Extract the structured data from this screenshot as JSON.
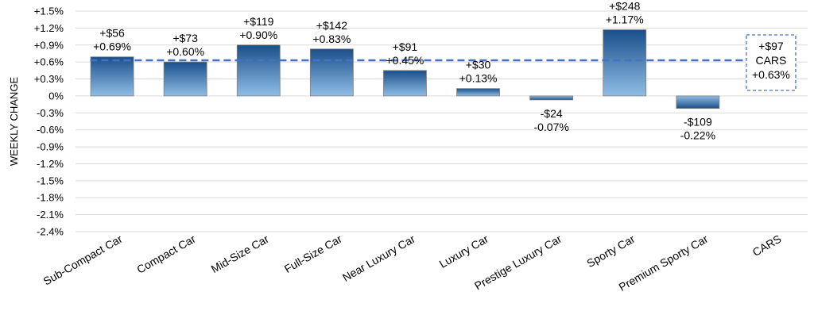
{
  "chart_data": {
    "type": "bar",
    "title": "",
    "xlabel": "",
    "ylabel": "WEEKLY CHANGE",
    "ylim": [
      -2.4,
      1.5
    ],
    "y_ticks": [
      "+1.5%",
      "+1.2%",
      "+0.9%",
      "+0.6%",
      "+0.3%",
      "0%",
      "-0.3%",
      "-0.6%",
      "-0.9%",
      "-1.2%",
      "-1.5%",
      "-1.8%",
      "-2.1%",
      "-2.4%"
    ],
    "grid": true,
    "categories": [
      "Sub-Compact Car",
      "Compact Car",
      "Mid-Size Car",
      "Full-Size Car",
      "Near Luxury Car",
      "Luxury Car",
      "Prestige Luxury Car",
      "Sporty Car",
      "Premium Sporty Car",
      "CARS"
    ],
    "values": [
      0.69,
      0.6,
      0.9,
      0.83,
      0.45,
      0.13,
      -0.07,
      1.17,
      -0.22,
      null
    ],
    "dollar_labels": [
      "+$56",
      "+$73",
      "+$119",
      "+$142",
      "+$91",
      "+$30",
      "-$24",
      "+$248",
      "-$109"
    ],
    "percent_labels": [
      "+0.69%",
      "+0.60%",
      "+0.90%",
      "+0.83%",
      "+0.45%",
      "+0.13%",
      "-0.07%",
      "+1.17%",
      "-0.22%"
    ],
    "reference_line": {
      "value": 0.63,
      "dollar_label": "+$97",
      "name_label": "CARS",
      "percent_label": "+0.63%"
    },
    "colors": {
      "bar_top": "#1a4f8a",
      "bar_bottom": "#8fbde6",
      "reference": "#4472c4",
      "grid": "#d9d9d9"
    }
  }
}
